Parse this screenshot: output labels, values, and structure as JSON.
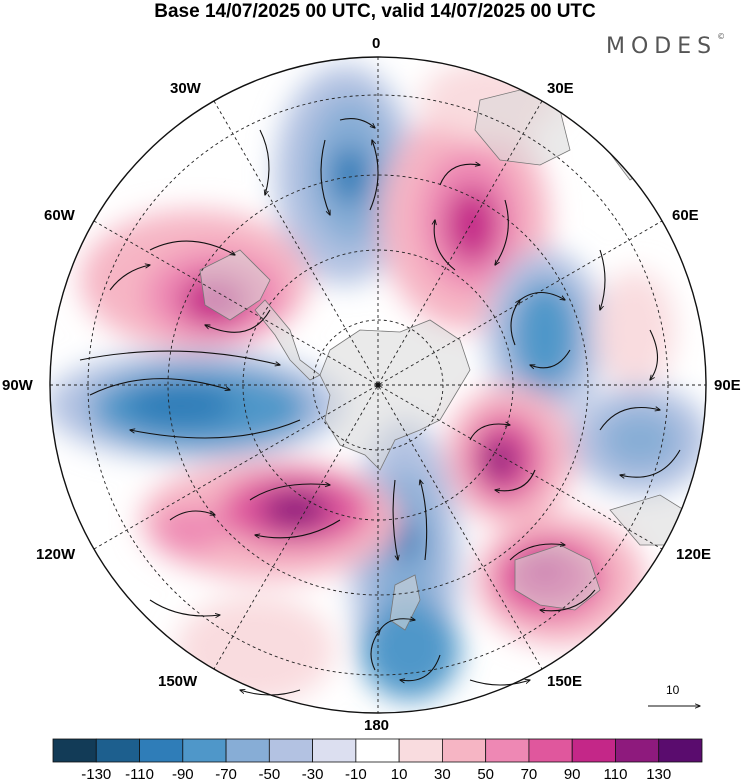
{
  "title": "Base 14/07/2025 00 UTC, valid 14/07/2025 00 UTC",
  "brand": "MODES",
  "brand_mark": "©",
  "longitude_labels": {
    "n0": "0",
    "e30": "30E",
    "e60": "60E",
    "e90": "90E",
    "e120": "120E",
    "e150": "150E",
    "s180": "180",
    "w150": "150W",
    "w120": "120W",
    "w90": "90W",
    "w60": "60W",
    "w30": "30W"
  },
  "vector_key_label": "10",
  "colorbar": {
    "labels": [
      "-130",
      "-110",
      "-90",
      "-70",
      "-50",
      "-30",
      "-10",
      "10",
      "30",
      "50",
      "70",
      "90",
      "110",
      "130"
    ],
    "colors": [
      "#123b57",
      "#1d5f8e",
      "#2f7db8",
      "#4f97c9",
      "#87add6",
      "#b3c2e2",
      "#dcdff0",
      "#ffffff",
      "#f9dcdf",
      "#f6b5c4",
      "#ee88b4",
      "#e0579d",
      "#c42788",
      "#8e1a7d",
      "#5a0c6e"
    ]
  },
  "map": {
    "projection": "south polar stereographic",
    "anomaly_centers": [
      {
        "lon_label": "~10W",
        "sign": "negative",
        "level": -90
      },
      {
        "lon_label": "~25E",
        "sign": "positive",
        "level": 90
      },
      {
        "lon_label": "~65E",
        "sign": "negative",
        "level": -70
      },
      {
        "lon_label": "~115E",
        "sign": "positive",
        "level": 110
      },
      {
        "lon_label": "~105E",
        "sign": "negative",
        "level": -50
      },
      {
        "lon_label": "~135E",
        "sign": "positive",
        "level": 90
      },
      {
        "lon_label": "~165E",
        "sign": "negative",
        "level": -90
      },
      {
        "lon_label": "~165W",
        "sign": "negative",
        "level": -70
      },
      {
        "lon_label": "~120W",
        "sign": "positive",
        "level": 110
      },
      {
        "lon_label": "~85W",
        "sign": "negative",
        "level": -90
      },
      {
        "lon_label": "~55W",
        "sign": "positive",
        "level": 90
      }
    ]
  }
}
